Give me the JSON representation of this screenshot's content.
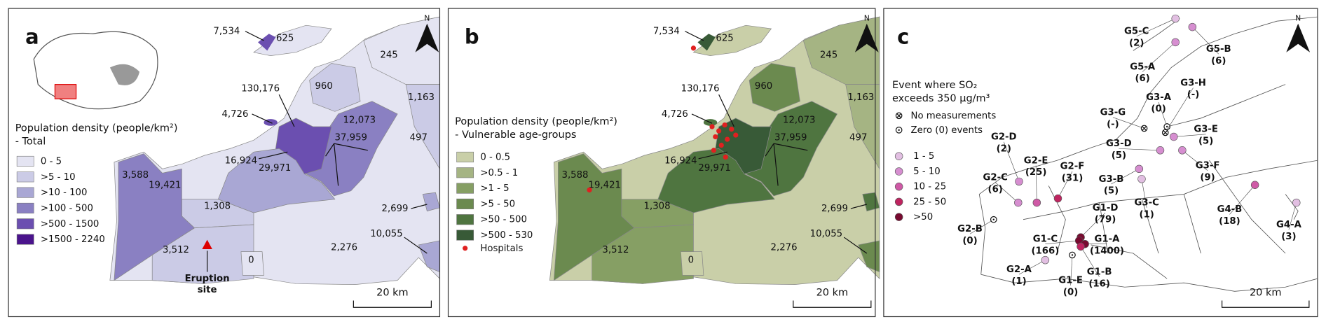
{
  "panels": [
    {
      "letter": "a",
      "north": "N",
      "scale": "20 km",
      "legend": {
        "title": "Population density (people/km²)",
        "subtitle": "- Total",
        "items": [
          {
            "label": "0 - 5",
            "color": "#e4e4f2"
          },
          {
            "label": ">5 - 10",
            "color": "#cbcbe6"
          },
          {
            "label": ">10 - 100",
            "color": "#a9a7d4"
          },
          {
            "label": ">100 - 500",
            "color": "#8a80c2"
          },
          {
            "label": ">500 - 1500",
            "color": "#6b4fb0"
          },
          {
            "label": ">1500 - 2240",
            "color": "#4a148c"
          }
        ]
      },
      "labels": [
        "7,534",
        "625",
        "245",
        "960",
        "1,163",
        "130,176",
        "4,726",
        "12,073",
        "497",
        "37,959",
        "16,924",
        "29,971",
        "3,588",
        "19,421",
        "1,308",
        "2,699",
        "10,055",
        "3,512",
        "0",
        "2,276"
      ],
      "annotation": [
        "Eruption",
        "site"
      ]
    },
    {
      "letter": "b",
      "north": "N",
      "scale": "20 km",
      "legend": {
        "title": "Population density (people/km²)",
        "subtitle": "- Vulnerable age-groups",
        "items": [
          {
            "label": "0 - 0.5",
            "color": "#c9cfa8"
          },
          {
            "label": ">0.5 - 1",
            "color": "#a5b483"
          },
          {
            "label": ">1 - 5",
            "color": "#869f64"
          },
          {
            "label": ">5 - 50",
            "color": "#6b8a4f"
          },
          {
            "label": ">50 - 500",
            "color": "#4f7540"
          },
          {
            "label": ">500 - 530",
            "color": "#385a37"
          }
        ],
        "hospitals": "Hospitals"
      },
      "labels": [
        "7,534",
        "625",
        "245",
        "960",
        "1,163",
        "130,176",
        "4,726",
        "12,073",
        "497",
        "37,959",
        "16,924",
        "29,971",
        "3,588",
        "19,421",
        "1,308",
        "2,699",
        "10,055",
        "3,512",
        "0",
        "2,276"
      ]
    },
    {
      "letter": "c",
      "north": "N",
      "scale": "20 km",
      "legend": {
        "title": [
          "Event where SO₂",
          "exceeds 350 µg/m³"
        ],
        "markers": [
          "No measurements",
          "Zero (0) events"
        ],
        "items": [
          {
            "label": "1 - 5",
            "color": "#e2bfe2"
          },
          {
            "label": "5 - 10",
            "color": "#d68ed0"
          },
          {
            "label": "10 - 25",
            "color": "#cf59a6"
          },
          {
            "label": "25 - 50",
            "color": "#bf2460"
          },
          {
            "label": ">50",
            "color": "#780a30"
          }
        ]
      },
      "sites": [
        {
          "name": "G5-C",
          "value": "(2)"
        },
        {
          "name": "G5-B",
          "value": "(6)"
        },
        {
          "name": "G5-A",
          "value": "(6)"
        },
        {
          "name": "G3-A",
          "value": "(0)"
        },
        {
          "name": "G3-H",
          "value": "(-)"
        },
        {
          "name": "G3-G",
          "value": "(-)"
        },
        {
          "name": "G3-E",
          "value": "(5)"
        },
        {
          "name": "G3-D",
          "value": "(5)"
        },
        {
          "name": "G3-F",
          "value": "(9)"
        },
        {
          "name": "G2-D",
          "value": "(2)"
        },
        {
          "name": "G2-E",
          "value": "(25)"
        },
        {
          "name": "G2-F",
          "value": "(31)"
        },
        {
          "name": "G2-C",
          "value": "(6)"
        },
        {
          "name": "G3-B",
          "value": "(5)"
        },
        {
          "name": "G3-C",
          "value": "(1)"
        },
        {
          "name": "G4-B",
          "value": "(18)"
        },
        {
          "name": "G4-A",
          "value": "(3)"
        },
        {
          "name": "G1-D",
          "value": "(79)"
        },
        {
          "name": "G2-B",
          "value": "(0)"
        },
        {
          "name": "G1-C",
          "value": "(166)"
        },
        {
          "name": "G1-A",
          "value": "(1400)"
        },
        {
          "name": "G1-B",
          "value": "(16)"
        },
        {
          "name": "G2-A",
          "value": "(1)"
        },
        {
          "name": "G1-E",
          "value": "(0)"
        }
      ]
    }
  ]
}
